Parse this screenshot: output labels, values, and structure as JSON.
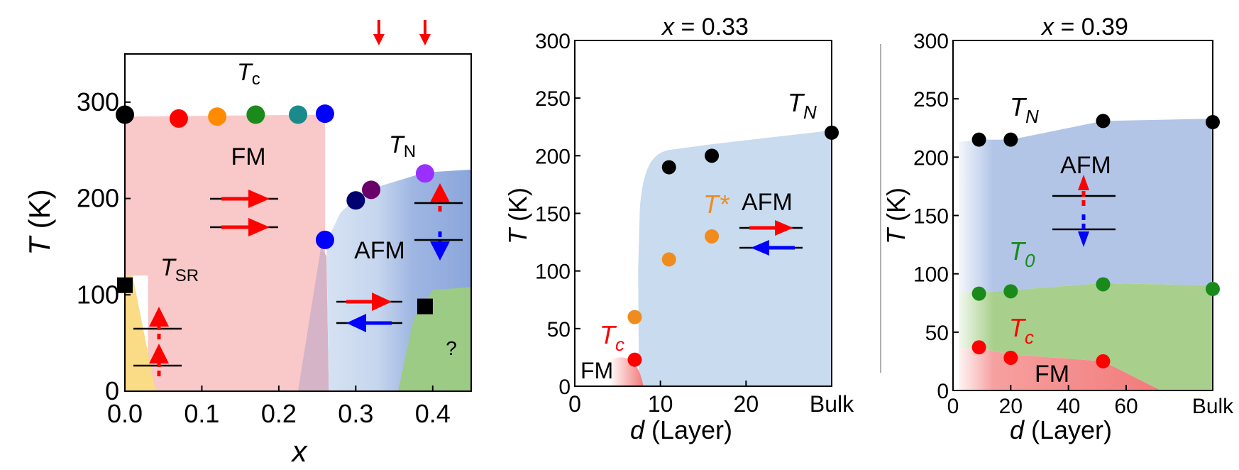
{
  "chart_data": [
    {
      "type": "scatter",
      "subtitle": "",
      "xlabel": "x",
      "ylabel": "T (K)",
      "xlim": [
        0.0,
        0.45
      ],
      "ylim": [
        0,
        350
      ],
      "xticks": [
        "0.0",
        "0.1",
        "0.2",
        "0.3",
        "0.4"
      ],
      "yticks": [
        "0",
        "100",
        "200",
        "300"
      ],
      "points": [
        {
          "x": 0.0,
          "y": 287,
          "color": "#000000",
          "marker": "circle"
        },
        {
          "x": 0.07,
          "y": 283,
          "color": "#ff0000",
          "marker": "circle"
        },
        {
          "x": 0.12,
          "y": 285,
          "color": "#ff8c00",
          "marker": "circle"
        },
        {
          "x": 0.17,
          "y": 287,
          "color": "#1a8a1a",
          "marker": "circle"
        },
        {
          "x": 0.225,
          "y": 287,
          "color": "#1a8a8a",
          "marker": "circle"
        },
        {
          "x": 0.26,
          "y": 288,
          "color": "#0000ff",
          "marker": "circle"
        },
        {
          "x": 0.26,
          "y": 157,
          "color": "#0000ff",
          "marker": "circle"
        },
        {
          "x": 0.3,
          "y": 198,
          "color": "#00006e",
          "marker": "circle"
        },
        {
          "x": 0.32,
          "y": 209,
          "color": "#6a006a",
          "marker": "circle"
        },
        {
          "x": 0.39,
          "y": 226,
          "color": "#9a30ff",
          "marker": "circle"
        },
        {
          "x": 0.0,
          "y": 110,
          "color": "#000000",
          "marker": "square"
        },
        {
          "x": 0.39,
          "y": 88,
          "color": "#000000",
          "marker": "square"
        }
      ],
      "annotations": {
        "tc": "T",
        "tc_sub": "c",
        "tn": "T",
        "tn_sub": "N",
        "tsr": "T",
        "tsr_sub": "SR",
        "fm": "FM",
        "afm": "AFM",
        "unknown": "?"
      },
      "top_markers_x": [
        0.33,
        0.39
      ]
    },
    {
      "type": "scatter",
      "title": "x = 0.33",
      "title_var": "x",
      "title_rest": " = 0.33",
      "xlabel": "d (Layer)",
      "xlabel_var": "d",
      "xlabel_rest": " (Layer)",
      "ylabel": "T (K)",
      "xlim": [
        0,
        30
      ],
      "ylim": [
        0,
        300
      ],
      "xticks": [
        "0",
        "10",
        "20",
        "Bulk"
      ],
      "yticks": [
        "0",
        "50",
        "100",
        "150",
        "200",
        "250",
        "300"
      ],
      "series": [
        {
          "name": "T_N",
          "color": "#000000",
          "x": [
            11,
            16,
            30
          ],
          "y": [
            190,
            200,
            220
          ]
        },
        {
          "name": "T*",
          "color": "#f08c1e",
          "x": [
            7,
            11,
            16
          ],
          "y": [
            60,
            110,
            130
          ]
        },
        {
          "name": "T_c",
          "color": "#ff0000",
          "x": [
            7
          ],
          "y": [
            23
          ]
        }
      ],
      "annotations": {
        "tn": "T",
        "tn_sub": "N",
        "tstar": "T*",
        "tc": "T",
        "tc_sub": "c",
        "afm": "AFM",
        "fm": "FM"
      }
    },
    {
      "type": "scatter",
      "title": "x = 0.39",
      "title_var": "x",
      "title_rest": " = 0.39",
      "xlabel": "d (Layer)",
      "xlabel_var": "d",
      "xlabel_rest": " (Layer)",
      "ylabel": "T (K)",
      "xlim": [
        0,
        90
      ],
      "ylim": [
        0,
        300
      ],
      "xticks": [
        "0",
        "20",
        "40",
        "60",
        "Bulk"
      ],
      "yticks": [
        "0",
        "50",
        "100",
        "150",
        "200",
        "250",
        "300"
      ],
      "series": [
        {
          "name": "T_N",
          "color": "#000000",
          "x": [
            9,
            20,
            52,
            90
          ],
          "y": [
            215,
            215,
            231,
            230
          ]
        },
        {
          "name": "T_0",
          "color": "#1a8a1a",
          "x": [
            9,
            20,
            52,
            90
          ],
          "y": [
            83,
            85,
            91,
            87
          ]
        },
        {
          "name": "T_c",
          "color": "#ff0000",
          "x": [
            9,
            20,
            52
          ],
          "y": [
            37,
            28,
            25
          ]
        }
      ],
      "annotations": {
        "tn": "T",
        "tn_sub": "N",
        "t0": "T",
        "t0_sub": "0",
        "tc": "T",
        "tc_sub": "c",
        "afm": "AFM",
        "fm": "FM"
      }
    }
  ]
}
